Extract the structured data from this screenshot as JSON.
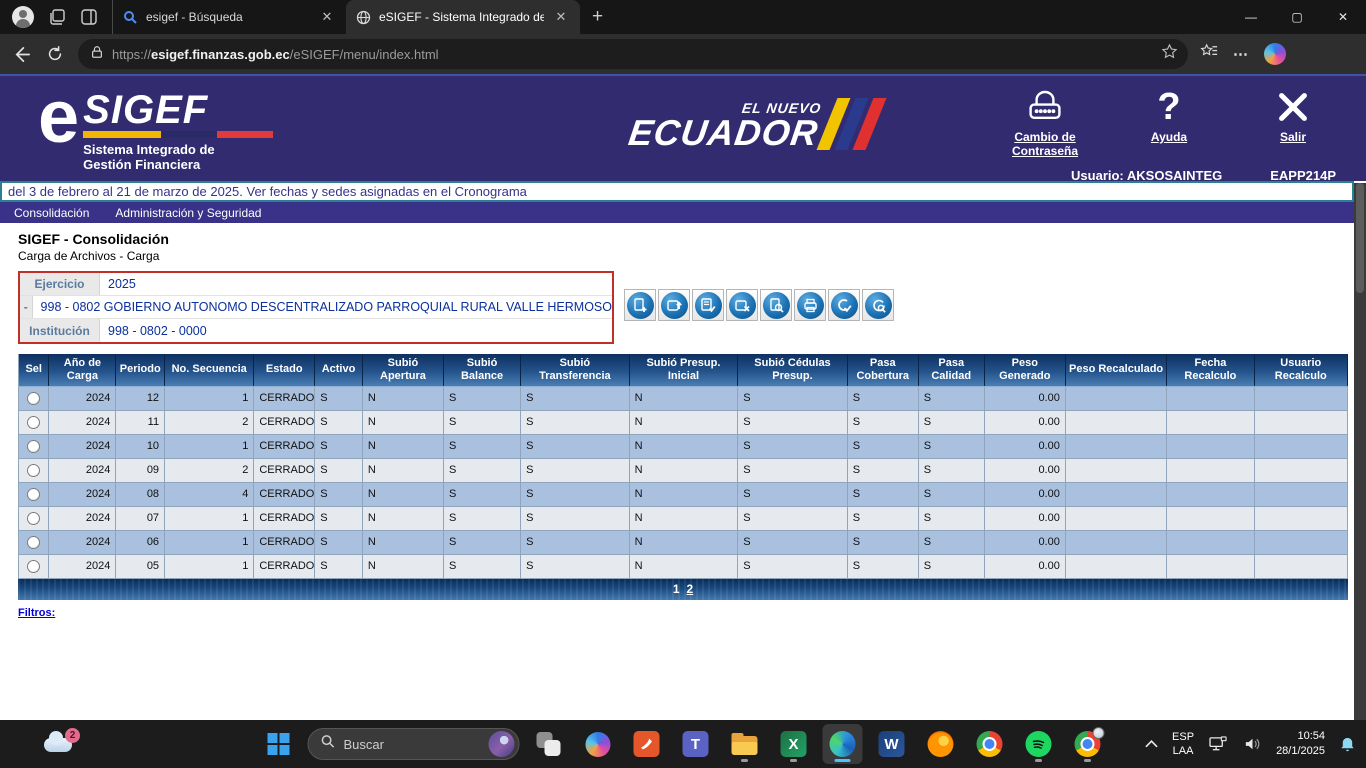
{
  "browser": {
    "tabs": [
      {
        "title": "esigef - Búsqueda",
        "favicon": "search-icon"
      },
      {
        "title": "eSIGEF - Sistema Integrado de Ge",
        "favicon": "globe-icon"
      }
    ],
    "url_prefix": "https://",
    "url_domain": "esigef.finanzas.gob.ec",
    "url_path": "/eSIGEF/menu/index.html"
  },
  "header": {
    "logo_e": "e",
    "logo_main": "SIGEF",
    "logo_sub1": "Sistema Integrado de",
    "logo_sub2": "Gestión Financiera",
    "brand_top": "EL NUEVO",
    "brand_main": "ECUADOR",
    "brand_colors": [
      "#f2c400",
      "#2a3a8c",
      "#e03030"
    ],
    "actions": [
      {
        "name": "change-password",
        "label": "Cambio de Contraseña"
      },
      {
        "name": "help",
        "label": "Ayuda"
      },
      {
        "name": "exit",
        "label": "Salir"
      }
    ],
    "user": "Usuario: AKSOSAINTEG",
    "terminal": "EAPP214P"
  },
  "marquee": "del 3 de febrero al 21 de marzo de 2025. Ver fechas y sedes asignadas en el Cronograma",
  "menu": [
    "Consolidación",
    "Administración y Seguridad"
  ],
  "page": {
    "title": "SIGEF - Consolidación",
    "subtitle": "Carga de Archivos - Carga"
  },
  "filters": {
    "rows": [
      {
        "label": "Ejercicio",
        "value": "2025"
      },
      {
        "label": "-",
        "value": "998 - 0802 GOBIERNO AUTONOMO DESCENTRALIZADO PARROQUIAL RURAL VALLE HERMOSO"
      },
      {
        "label": "Institución",
        "value": "998 - 0802 - 0000"
      }
    ]
  },
  "toolbar": {
    "buttons": [
      "create",
      "upload-save",
      "validate",
      "delete-save",
      "preview",
      "print",
      "approve",
      "search-refresh"
    ]
  },
  "table": {
    "columns": [
      "Sel",
      "Año de Carga",
      "Periodo",
      "No. Secuencia",
      "Estado",
      "Activo",
      "Subió Apertura",
      "Subió Balance",
      "Subió Transferencia",
      "Subió Presup. Inicial",
      "Subió Cédulas Presup.",
      "Pasa Cobertura",
      "Pasa Calidad",
      "Peso Generado",
      "Peso Recalculado",
      "Fecha Recalculo",
      "Usuario Recalculo"
    ],
    "rows": [
      [
        "2024",
        "12",
        "1",
        "CERRADO",
        "S",
        "N",
        "S",
        "S",
        "N",
        "S",
        "S",
        "S",
        "0.00",
        "",
        "",
        ""
      ],
      [
        "2024",
        "11",
        "2",
        "CERRADO",
        "S",
        "N",
        "S",
        "S",
        "N",
        "S",
        "S",
        "S",
        "0.00",
        "",
        "",
        ""
      ],
      [
        "2024",
        "10",
        "1",
        "CERRADO",
        "S",
        "N",
        "S",
        "S",
        "N",
        "S",
        "S",
        "S",
        "0.00",
        "",
        "",
        ""
      ],
      [
        "2024",
        "09",
        "2",
        "CERRADO",
        "S",
        "N",
        "S",
        "S",
        "N",
        "S",
        "S",
        "S",
        "0.00",
        "",
        "",
        ""
      ],
      [
        "2024",
        "08",
        "4",
        "CERRADO",
        "S",
        "N",
        "S",
        "S",
        "N",
        "S",
        "S",
        "S",
        "0.00",
        "",
        "",
        ""
      ],
      [
        "2024",
        "07",
        "1",
        "CERRADO",
        "S",
        "N",
        "S",
        "S",
        "N",
        "S",
        "S",
        "S",
        "0.00",
        "",
        "",
        ""
      ],
      [
        "2024",
        "06",
        "1",
        "CERRADO",
        "S",
        "N",
        "S",
        "S",
        "N",
        "S",
        "S",
        "S",
        "0.00",
        "",
        "",
        ""
      ],
      [
        "2024",
        "05",
        "1",
        "CERRADO",
        "S",
        "N",
        "S",
        "S",
        "N",
        "S",
        "S",
        "S",
        "0.00",
        "",
        "",
        ""
      ]
    ],
    "pagination": {
      "current": "1",
      "other": "2"
    }
  },
  "filters_link": "Filtros:",
  "taskbar": {
    "badge": "2",
    "search_placeholder": "Buscar",
    "apps": [
      "task-view",
      "copilot",
      "pdf-app",
      "teams",
      "file-explorer",
      "excel",
      "edge",
      "word",
      "firefox",
      "chrome",
      "spotify",
      "chrome-profile"
    ],
    "tray": {
      "lang_line1": "ESP",
      "lang_line2": "LAA",
      "time": "10:54",
      "date": "28/1/2025"
    }
  }
}
